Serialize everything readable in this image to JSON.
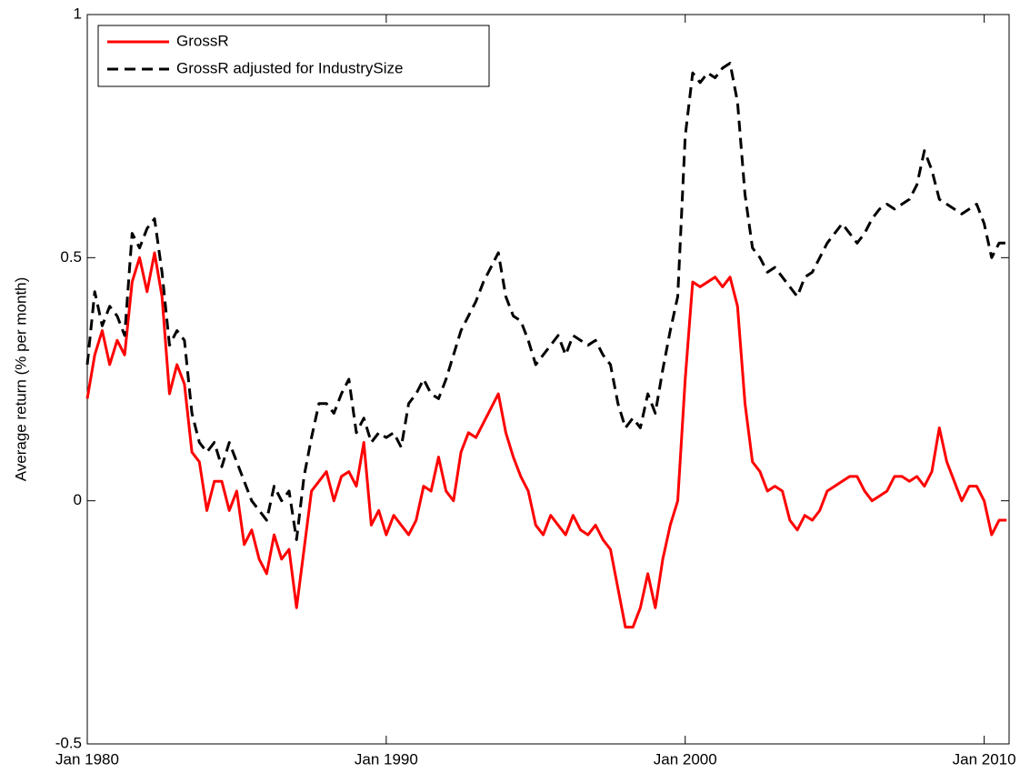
{
  "chart_data": {
    "type": "line",
    "y_label": "Average return (% per month)",
    "x": [
      "1980-01",
      "1980-04",
      "1980-07",
      "1980-10",
      "1981-01",
      "1981-04",
      "1981-07",
      "1981-10",
      "1982-01",
      "1982-04",
      "1982-07",
      "1982-10",
      "1983-01",
      "1983-04",
      "1983-07",
      "1983-10",
      "1984-01",
      "1984-04",
      "1984-07",
      "1984-10",
      "1985-01",
      "1985-04",
      "1985-07",
      "1985-10",
      "1986-01",
      "1986-04",
      "1986-07",
      "1986-10",
      "1987-01",
      "1987-04",
      "1987-07",
      "1987-10",
      "1988-01",
      "1988-04",
      "1988-07",
      "1988-10",
      "1989-01",
      "1989-04",
      "1989-07",
      "1989-10",
      "1990-01",
      "1990-04",
      "1990-07",
      "1990-10",
      "1991-01",
      "1991-04",
      "1991-07",
      "1991-10",
      "1992-01",
      "1992-04",
      "1992-07",
      "1992-10",
      "1993-01",
      "1993-04",
      "1993-07",
      "1993-10",
      "1994-01",
      "1994-04",
      "1994-07",
      "1994-10",
      "1995-01",
      "1995-04",
      "1995-07",
      "1995-10",
      "1996-01",
      "1996-04",
      "1996-07",
      "1996-10",
      "1997-01",
      "1997-04",
      "1997-07",
      "1997-10",
      "1998-01",
      "1998-04",
      "1998-07",
      "1998-10",
      "1999-01",
      "1999-04",
      "1999-07",
      "1999-10",
      "2000-01",
      "2000-04",
      "2000-07",
      "2000-10",
      "2001-01",
      "2001-04",
      "2001-07",
      "2001-10",
      "2002-01",
      "2002-04",
      "2002-07",
      "2002-10",
      "2003-01",
      "2003-04",
      "2003-07",
      "2003-10",
      "2004-01",
      "2004-04",
      "2004-07",
      "2004-10",
      "2005-01",
      "2005-04",
      "2005-07",
      "2005-10",
      "2006-01",
      "2006-04",
      "2006-07",
      "2006-10",
      "2007-01",
      "2007-04",
      "2007-07",
      "2007-10",
      "2008-01",
      "2008-04",
      "2008-07",
      "2008-10",
      "2009-01",
      "2009-04",
      "2009-07",
      "2009-10",
      "2010-01",
      "2010-04",
      "2010-07",
      "2010-10"
    ],
    "series": [
      {
        "name": "GrossR",
        "color": "#ff0000",
        "dash": "solid",
        "values": [
          0.21,
          0.3,
          0.35,
          0.28,
          0.33,
          0.3,
          0.45,
          0.5,
          0.43,
          0.51,
          0.42,
          0.22,
          0.28,
          0.24,
          0.1,
          0.08,
          -0.02,
          0.04,
          0.04,
          -0.02,
          0.02,
          -0.09,
          -0.06,
          -0.12,
          -0.15,
          -0.07,
          -0.12,
          -0.1,
          -0.22,
          -0.1,
          0.02,
          0.04,
          0.06,
          0.0,
          0.05,
          0.06,
          0.03,
          0.12,
          -0.05,
          -0.02,
          -0.07,
          -0.03,
          -0.05,
          -0.07,
          -0.04,
          0.03,
          0.02,
          0.09,
          0.02,
          0.0,
          0.1,
          0.14,
          0.13,
          0.16,
          0.19,
          0.22,
          0.14,
          0.09,
          0.05,
          0.02,
          -0.05,
          -0.07,
          -0.03,
          -0.05,
          -0.07,
          -0.03,
          -0.06,
          -0.07,
          -0.05,
          -0.08,
          -0.1,
          -0.18,
          -0.26,
          -0.26,
          -0.22,
          -0.15,
          -0.22,
          -0.12,
          -0.05,
          0.0,
          0.25,
          0.45,
          0.44,
          0.45,
          0.46,
          0.44,
          0.46,
          0.4,
          0.2,
          0.08,
          0.06,
          0.02,
          0.03,
          0.02,
          -0.04,
          -0.06,
          -0.03,
          -0.04,
          -0.02,
          0.02,
          0.03,
          0.04,
          0.05,
          0.05,
          0.02,
          0.0,
          0.01,
          0.02,
          0.05,
          0.05,
          0.04,
          0.05,
          0.03,
          0.06,
          0.15,
          0.08,
          0.04,
          0.0,
          0.03,
          0.03,
          0.0,
          -0.07,
          -0.04,
          -0.04
        ]
      },
      {
        "name": "GrossR adjusted for IndustrySize",
        "color": "#000000",
        "dash": "dashed",
        "values": [
          0.28,
          0.43,
          0.36,
          0.4,
          0.38,
          0.34,
          0.55,
          0.52,
          0.56,
          0.58,
          0.47,
          0.32,
          0.35,
          0.33,
          0.18,
          0.12,
          0.1,
          0.12,
          0.07,
          0.12,
          0.08,
          0.04,
          0.0,
          -0.02,
          -0.04,
          0.03,
          0.0,
          0.02,
          -0.08,
          0.05,
          0.13,
          0.2,
          0.2,
          0.18,
          0.22,
          0.25,
          0.14,
          0.17,
          0.12,
          0.14,
          0.13,
          0.14,
          0.11,
          0.2,
          0.22,
          0.25,
          0.22,
          0.21,
          0.25,
          0.3,
          0.35,
          0.38,
          0.41,
          0.45,
          0.48,
          0.51,
          0.42,
          0.38,
          0.37,
          0.33,
          0.28,
          0.3,
          0.32,
          0.34,
          0.3,
          0.34,
          0.33,
          0.32,
          0.33,
          0.3,
          0.28,
          0.2,
          0.15,
          0.17,
          0.15,
          0.22,
          0.18,
          0.27,
          0.35,
          0.42,
          0.75,
          0.88,
          0.86,
          0.88,
          0.87,
          0.89,
          0.9,
          0.82,
          0.63,
          0.52,
          0.5,
          0.47,
          0.48,
          0.46,
          0.44,
          0.42,
          0.46,
          0.47,
          0.5,
          0.53,
          0.55,
          0.57,
          0.55,
          0.53,
          0.55,
          0.58,
          0.6,
          0.61,
          0.6,
          0.61,
          0.62,
          0.65,
          0.72,
          0.68,
          0.62,
          0.61,
          0.6,
          0.59,
          0.6,
          0.61,
          0.57,
          0.5,
          0.53,
          0.53
        ]
      }
    ],
    "xlim": [
      "1980-01",
      "2010-11"
    ],
    "xticks": [
      {
        "value": "1980-01",
        "label": "Jan 1980"
      },
      {
        "value": "1990-01",
        "label": "Jan 1990"
      },
      {
        "value": "2000-01",
        "label": "Jan 2000"
      },
      {
        "value": "2010-01",
        "label": "Jan 2010"
      }
    ],
    "ylim": [
      -0.5,
      1
    ],
    "yticks": [
      -0.5,
      0,
      0.5,
      1
    ],
    "legend": "upper left",
    "grid": false
  }
}
